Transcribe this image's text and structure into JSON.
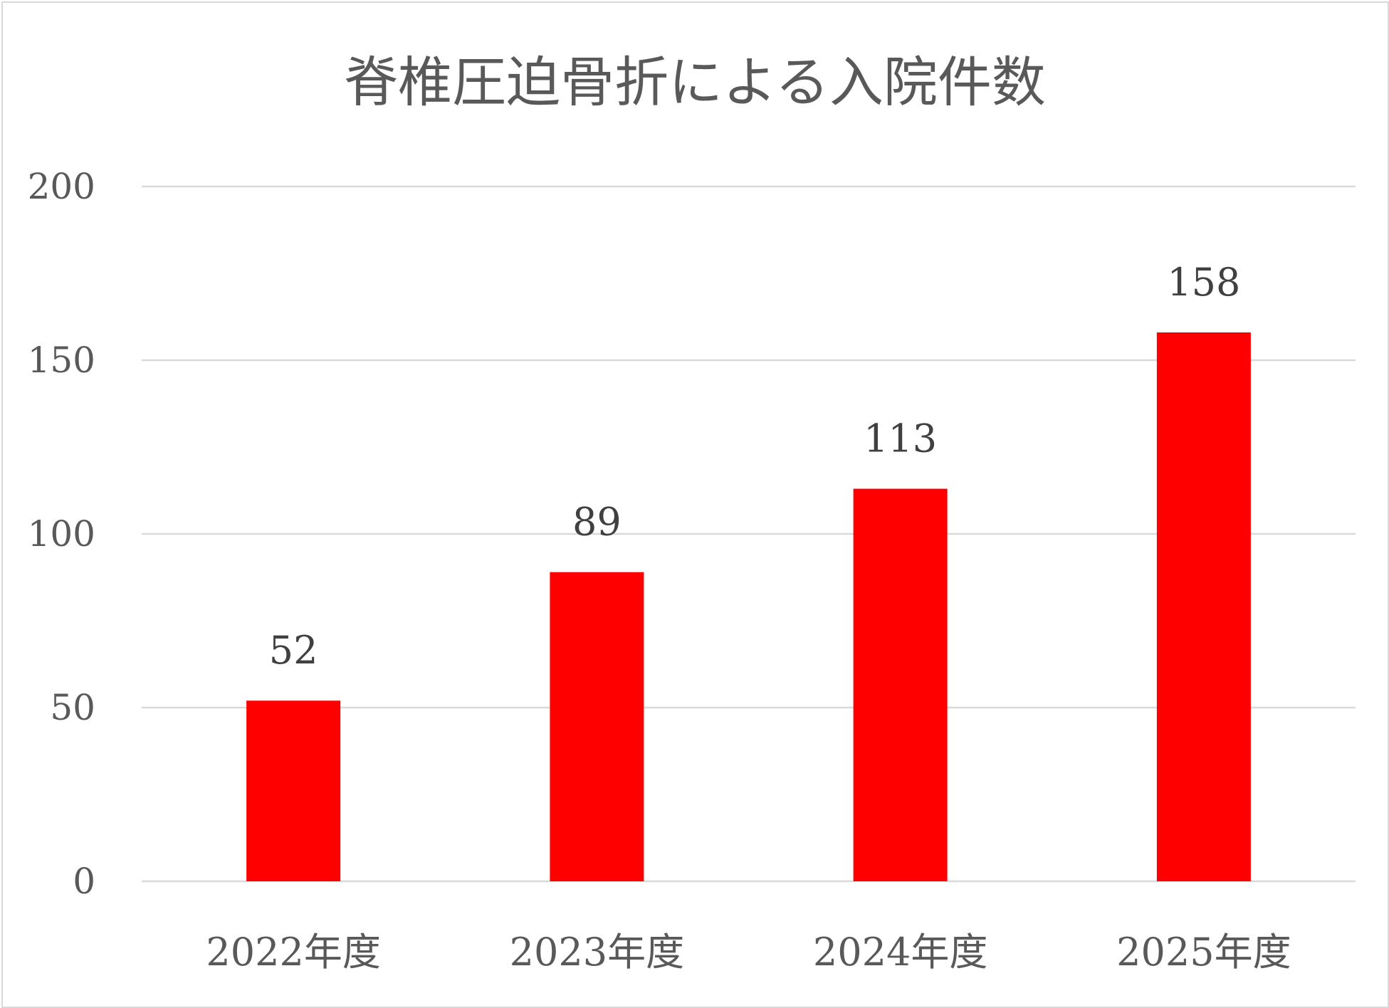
{
  "chart_data": {
    "type": "bar",
    "title": "脊椎圧迫骨折による入院件数",
    "xlabel": "",
    "ylabel": "",
    "categories": [
      "2022年度",
      "2023年度",
      "2024年度",
      "2025年度"
    ],
    "values": [
      52,
      89,
      113,
      158
    ],
    "data_labels": [
      "52",
      "89",
      "113",
      "158"
    ],
    "ylim": [
      0,
      200
    ],
    "yticks": [
      0,
      50,
      100,
      150,
      200
    ],
    "ytick_labels": [
      "0",
      "50",
      "100",
      "150",
      "200"
    ],
    "grid": true,
    "legend": "none",
    "bar_color": "#ff0000",
    "gridline_color": "#d9d9d9",
    "text_color": "#595959"
  }
}
